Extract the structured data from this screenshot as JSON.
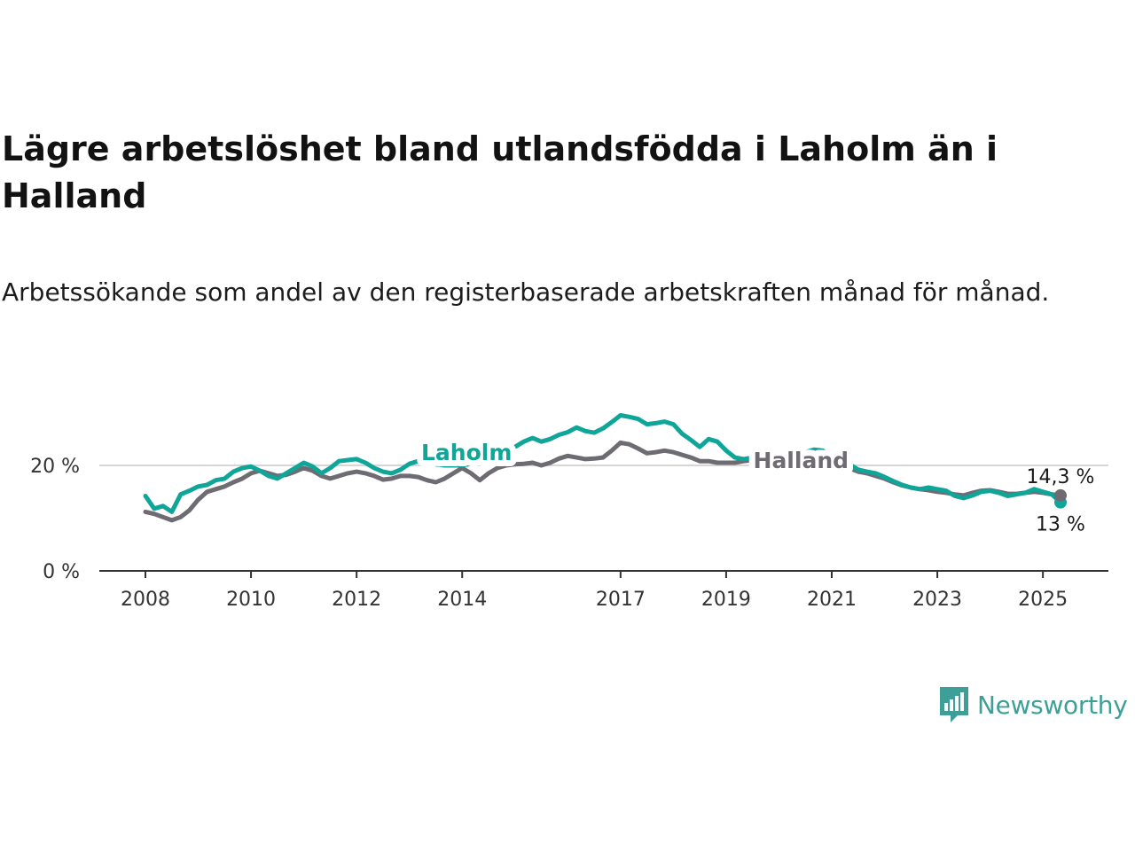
{
  "title": "Lägre arbetslöshet bland utlandsfödda i Laholm än i Halland",
  "subtitle": "Arbetssökande som andel av den registerbaserade arbetskraften månad för månad.",
  "brand": {
    "name": "Newsworthy",
    "icon": "newsworthy-logo-icon",
    "color": "#3e9f98"
  },
  "chart_data": {
    "type": "line",
    "title": "Lägre arbetslöshet bland utlandsfödda i Laholm än i Halland",
    "subtitle": "Arbetssökande som andel av den registerbaserade arbetskraften månad för månad.",
    "xlabel": "",
    "ylabel": "",
    "x_ticks": [
      "2008",
      "2010",
      "2012",
      "2014",
      "2017",
      "2019",
      "2021",
      "2023",
      "2025"
    ],
    "y_ticks": [
      "0 %",
      "20 %"
    ],
    "ylim": [
      0,
      31
    ],
    "grid": true,
    "legend": "inline-labels",
    "series": [
      {
        "name": "Laholm",
        "color": "#10a599",
        "end_label": "13 %",
        "points": [
          [
            "2008-01",
            14.2
          ],
          [
            "2008-03",
            11.8
          ],
          [
            "2008-05",
            12.3
          ],
          [
            "2008-07",
            11.2
          ],
          [
            "2008-09",
            14.5
          ],
          [
            "2008-11",
            15.2
          ],
          [
            "2009-01",
            16.0
          ],
          [
            "2009-03",
            16.3
          ],
          [
            "2009-05",
            17.2
          ],
          [
            "2009-07",
            17.5
          ],
          [
            "2009-09",
            18.8
          ],
          [
            "2009-11",
            19.5
          ],
          [
            "2010-01",
            19.8
          ],
          [
            "2010-03",
            19.0
          ],
          [
            "2010-05",
            18.0
          ],
          [
            "2010-07",
            17.5
          ],
          [
            "2010-09",
            18.5
          ],
          [
            "2010-11",
            19.5
          ],
          [
            "2011-01",
            20.5
          ],
          [
            "2011-03",
            19.8
          ],
          [
            "2011-05",
            18.5
          ],
          [
            "2011-07",
            19.5
          ],
          [
            "2011-09",
            20.8
          ],
          [
            "2011-11",
            21.0
          ],
          [
            "2012-01",
            21.2
          ],
          [
            "2012-03",
            20.5
          ],
          [
            "2012-05",
            19.5
          ],
          [
            "2012-07",
            18.8
          ],
          [
            "2012-09",
            18.5
          ],
          [
            "2012-11",
            19.2
          ],
          [
            "2013-01",
            20.3
          ],
          [
            "2013-03",
            20.8
          ],
          [
            "2013-05",
            20.5
          ],
          [
            "2013-07",
            20.2
          ],
          [
            "2013-09",
            20.0
          ],
          [
            "2013-11",
            20.0
          ],
          [
            "2014-01",
            20.0
          ],
          [
            "2014-03",
            20.3
          ],
          [
            "2014-05",
            20.8
          ],
          [
            "2014-07",
            21.5
          ],
          [
            "2014-09",
            22.0
          ],
          [
            "2014-11",
            22.5
          ],
          [
            "2015-01",
            23.5
          ],
          [
            "2015-03",
            24.5
          ],
          [
            "2015-05",
            25.2
          ],
          [
            "2015-07",
            24.5
          ],
          [
            "2015-09",
            25.0
          ],
          [
            "2015-11",
            25.8
          ],
          [
            "2016-01",
            26.3
          ],
          [
            "2016-03",
            27.2
          ],
          [
            "2016-05",
            26.5
          ],
          [
            "2016-07",
            26.2
          ],
          [
            "2016-09",
            27.0
          ],
          [
            "2016-11",
            28.2
          ],
          [
            "2017-01",
            29.5
          ],
          [
            "2017-03",
            29.2
          ],
          [
            "2017-05",
            28.8
          ],
          [
            "2017-07",
            27.8
          ],
          [
            "2017-09",
            28.0
          ],
          [
            "2017-11",
            28.3
          ],
          [
            "2018-01",
            27.8
          ],
          [
            "2018-03",
            26.0
          ],
          [
            "2018-05",
            24.8
          ],
          [
            "2018-07",
            23.5
          ],
          [
            "2018-09",
            25.0
          ],
          [
            "2018-11",
            24.5
          ],
          [
            "2019-01",
            22.8
          ],
          [
            "2019-03",
            21.5
          ],
          [
            "2019-05",
            21.2
          ],
          [
            "2019-07",
            21.5
          ],
          [
            "2019-09",
            21.2
          ],
          [
            "2019-11",
            21.8
          ],
          [
            "2020-01",
            22.0
          ],
          [
            "2020-03",
            21.0
          ],
          [
            "2020-05",
            21.5
          ],
          [
            "2020-07",
            22.5
          ],
          [
            "2020-09",
            23.0
          ],
          [
            "2020-11",
            22.8
          ],
          [
            "2021-01",
            21.5
          ],
          [
            "2021-03",
            20.8
          ],
          [
            "2021-05",
            20.2
          ],
          [
            "2021-07",
            19.2
          ],
          [
            "2021-09",
            18.8
          ],
          [
            "2021-11",
            18.5
          ],
          [
            "2022-01",
            17.8
          ],
          [
            "2022-03",
            17.0
          ],
          [
            "2022-05",
            16.3
          ],
          [
            "2022-07",
            15.8
          ],
          [
            "2022-09",
            15.5
          ],
          [
            "2022-11",
            15.8
          ],
          [
            "2023-01",
            15.5
          ],
          [
            "2023-03",
            15.2
          ],
          [
            "2023-05",
            14.2
          ],
          [
            "2023-07",
            13.8
          ],
          [
            "2023-09",
            14.3
          ],
          [
            "2023-11",
            15.0
          ],
          [
            "2024-01",
            15.2
          ],
          [
            "2024-03",
            14.8
          ],
          [
            "2024-05",
            14.2
          ],
          [
            "2024-07",
            14.5
          ],
          [
            "2024-09",
            14.8
          ],
          [
            "2024-11",
            15.5
          ],
          [
            "2025-01",
            15.0
          ],
          [
            "2025-03",
            14.5
          ],
          [
            "2025-05",
            13.0
          ]
        ]
      },
      {
        "name": "Halland",
        "color": "#6f6b73",
        "end_label": "14,3 %",
        "points": [
          [
            "2008-01",
            11.2
          ],
          [
            "2008-03",
            10.8
          ],
          [
            "2008-05",
            10.2
          ],
          [
            "2008-07",
            9.6
          ],
          [
            "2008-09",
            10.2
          ],
          [
            "2008-11",
            11.5
          ],
          [
            "2009-01",
            13.5
          ],
          [
            "2009-03",
            15.0
          ],
          [
            "2009-05",
            15.5
          ],
          [
            "2009-07",
            16.0
          ],
          [
            "2009-09",
            16.8
          ],
          [
            "2009-11",
            17.5
          ],
          [
            "2010-01",
            18.5
          ],
          [
            "2010-03",
            19.0
          ],
          [
            "2010-05",
            18.5
          ],
          [
            "2010-07",
            18.0
          ],
          [
            "2010-09",
            18.2
          ],
          [
            "2010-11",
            18.8
          ],
          [
            "2011-01",
            19.5
          ],
          [
            "2011-03",
            19.0
          ],
          [
            "2011-05",
            18.0
          ],
          [
            "2011-07",
            17.5
          ],
          [
            "2011-09",
            18.0
          ],
          [
            "2011-11",
            18.5
          ],
          [
            "2012-01",
            18.8
          ],
          [
            "2012-03",
            18.5
          ],
          [
            "2012-05",
            18.0
          ],
          [
            "2012-07",
            17.3
          ],
          [
            "2012-09",
            17.5
          ],
          [
            "2012-11",
            18.0
          ],
          [
            "2013-01",
            18.0
          ],
          [
            "2013-03",
            17.8
          ],
          [
            "2013-05",
            17.2
          ],
          [
            "2013-07",
            16.8
          ],
          [
            "2013-09",
            17.5
          ],
          [
            "2013-11",
            18.5
          ],
          [
            "2014-01",
            19.5
          ],
          [
            "2014-03",
            18.5
          ],
          [
            "2014-05",
            17.2
          ],
          [
            "2014-07",
            18.5
          ],
          [
            "2014-09",
            19.5
          ],
          [
            "2014-11",
            20.0
          ],
          [
            "2015-01",
            20.2
          ],
          [
            "2015-03",
            20.3
          ],
          [
            "2015-05",
            20.5
          ],
          [
            "2015-07",
            20.0
          ],
          [
            "2015-09",
            20.5
          ],
          [
            "2015-11",
            21.3
          ],
          [
            "2016-01",
            21.8
          ],
          [
            "2016-03",
            21.5
          ],
          [
            "2016-05",
            21.2
          ],
          [
            "2016-07",
            21.3
          ],
          [
            "2016-09",
            21.5
          ],
          [
            "2016-11",
            22.8
          ],
          [
            "2017-01",
            24.3
          ],
          [
            "2017-03",
            24.0
          ],
          [
            "2017-05",
            23.2
          ],
          [
            "2017-07",
            22.3
          ],
          [
            "2017-09",
            22.5
          ],
          [
            "2017-11",
            22.8
          ],
          [
            "2018-01",
            22.5
          ],
          [
            "2018-03",
            22.0
          ],
          [
            "2018-05",
            21.5
          ],
          [
            "2018-07",
            20.8
          ],
          [
            "2018-09",
            20.8
          ],
          [
            "2018-11",
            20.5
          ],
          [
            "2019-01",
            20.5
          ],
          [
            "2019-03",
            20.5
          ],
          [
            "2019-05",
            20.8
          ],
          [
            "2019-07",
            21.0
          ],
          [
            "2019-09",
            21.2
          ],
          [
            "2019-11",
            21.0
          ],
          [
            "2020-01",
            20.8
          ],
          [
            "2020-03",
            21.5
          ],
          [
            "2020-05",
            21.8
          ],
          [
            "2020-07",
            21.5
          ],
          [
            "2020-09",
            21.3
          ],
          [
            "2020-11",
            21.0
          ],
          [
            "2021-01",
            20.5
          ],
          [
            "2021-03",
            20.0
          ],
          [
            "2021-05",
            19.5
          ],
          [
            "2021-07",
            18.8
          ],
          [
            "2021-09",
            18.5
          ],
          [
            "2021-11",
            18.0
          ],
          [
            "2022-01",
            17.5
          ],
          [
            "2022-03",
            16.8
          ],
          [
            "2022-05",
            16.2
          ],
          [
            "2022-07",
            15.8
          ],
          [
            "2022-09",
            15.5
          ],
          [
            "2022-11",
            15.3
          ],
          [
            "2023-01",
            15.0
          ],
          [
            "2023-03",
            14.8
          ],
          [
            "2023-05",
            14.5
          ],
          [
            "2023-07",
            14.3
          ],
          [
            "2023-09",
            14.8
          ],
          [
            "2023-11",
            15.2
          ],
          [
            "2024-01",
            15.3
          ],
          [
            "2024-03",
            15.0
          ],
          [
            "2024-05",
            14.6
          ],
          [
            "2024-07",
            14.6
          ],
          [
            "2024-09",
            14.8
          ],
          [
            "2024-11",
            15.0
          ],
          [
            "2025-01",
            14.8
          ],
          [
            "2025-03",
            14.5
          ],
          [
            "2025-05",
            14.3
          ]
        ]
      }
    ]
  }
}
